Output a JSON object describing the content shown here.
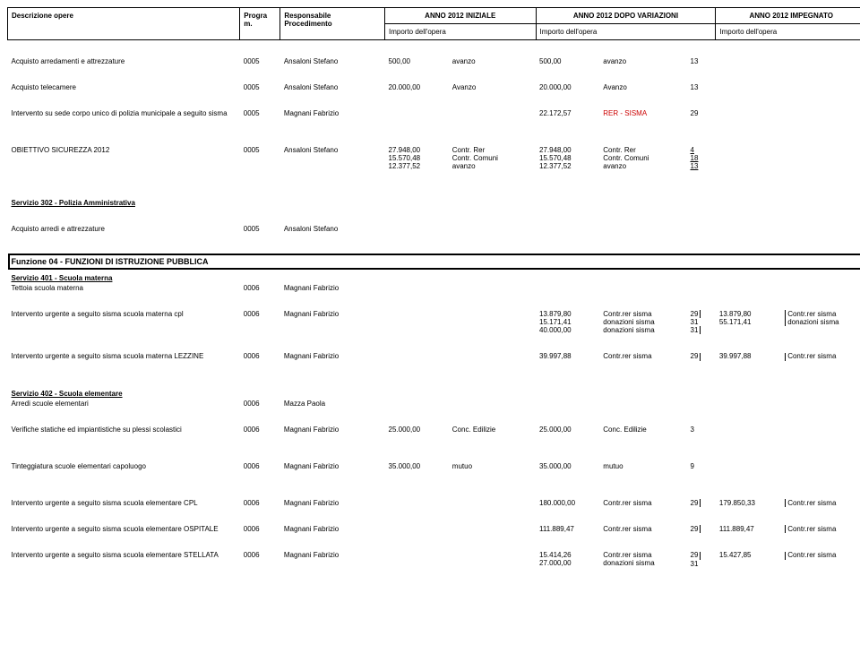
{
  "header": {
    "col0": "Descrizione opere",
    "col1": "Progra\nm.",
    "col2": "Responsabile\nProcedimento",
    "colA": "ANNO 2012 INIZIALE",
    "colB": "ANNO 2012 DOPO VARIAZIONI",
    "colC": "ANNO 2012 IMPEGNATO",
    "sub": "Importo dell'opera"
  },
  "rows": {
    "r1": {
      "desc": "Acquisto arredamenti e attrezzature",
      "prog": "0005",
      "resp": "Ansaloni Stefano",
      "a_val": "500,00",
      "a_src": "avanzo",
      "b_val": "500,00",
      "b_src": "avanzo",
      "b_n": "13"
    },
    "r2": {
      "desc": "Acquisto telecamere",
      "prog": "0005",
      "resp": "Ansaloni Stefano",
      "a_val": "20.000,00",
      "a_src": "Avanzo",
      "b_val": "20.000,00",
      "b_src": "Avanzo",
      "b_n": "13"
    },
    "r3": {
      "desc": "Intervento su sede corpo unico di polizia municipale a seguito sisma",
      "prog": "0005",
      "resp": "Magnani Fabrizio",
      "b_val": "22.172,57",
      "b_src": "RER - SISMA",
      "b_n": "29"
    },
    "r4": {
      "desc": "OBIETTIVO SICUREZZA 2012",
      "prog": "0005",
      "resp": "Ansaloni Stefano",
      "a_lines": [
        [
          "27.948,00",
          "Contr. Rer"
        ],
        [
          "15.570,48",
          "Contr. Comuni"
        ],
        [
          "12.377,52",
          "avanzo"
        ]
      ],
      "b_lines": [
        [
          "27.948,00",
          "Contr. Rer",
          "4"
        ],
        [
          "15.570,48",
          "Contr. Comuni",
          "18"
        ],
        [
          "12.377,52",
          "avanzo",
          "13"
        ]
      ]
    },
    "s302": "Servizio 302 - Polizia Amministrativa",
    "r5": {
      "desc": "Acquisto arredi e attrezzature",
      "prog": "0005",
      "resp": "Ansaloni Stefano"
    },
    "fn04": "Funzione 04 - FUNZIONI DI ISTRUZIONE PUBBLICA",
    "s401": "Servizio 401 - Scuola materna",
    "r6": {
      "desc": "Tettoia scuola materna",
      "prog": "0006",
      "resp": "Magnani Fabrizio"
    },
    "r7": {
      "desc": "Intervento urgente a seguito sisma scuola materna cpl",
      "prog": "0006",
      "resp": "Magnani Fabrizio",
      "b_lines": [
        [
          "13.879,80",
          "Contr.rer sisma",
          "29"
        ],
        [
          "15.171,41",
          "donazioni sisma",
          "31"
        ],
        [
          "40.000,00",
          "donazioni sisma",
          "31"
        ]
      ],
      "c_lines": [
        [
          "13.879,80",
          "Contr.rer sisma"
        ],
        [
          "55.171,41",
          "donazioni sisma"
        ]
      ]
    },
    "r8": {
      "desc": "Intervento urgente a seguito sisma scuola materna LEZZINE",
      "prog": "0006",
      "resp": "Magnani Fabrizio",
      "b_val": "39.997,88",
      "b_src": "Contr.rer sisma",
      "b_n": "29",
      "c_val": "39.997,88",
      "c_src": "Contr.rer sisma"
    },
    "s402": "Servizio 402 - Scuola elementare",
    "r9": {
      "desc": "Arredi scuole elementari",
      "prog": "0006",
      "resp": "Mazza Paola"
    },
    "r10": {
      "desc": "Verifiche statiche ed impiantistiche su plessi scolastici",
      "prog": "0006",
      "resp": "Magnani Fabrizio",
      "a_val": "25.000,00",
      "a_src": "Conc. Edilizie",
      "b_val": "25.000,00",
      "b_src": "Conc. Edilizie",
      "b_n": "3"
    },
    "r11": {
      "desc": "Tinteggiatura scuole elementari capoluogo",
      "prog": "0006",
      "resp": "Magnani Fabrizio",
      "a_val": "35.000,00",
      "a_src": "mutuo",
      "b_val": "35.000,00",
      "b_src": "mutuo",
      "b_n": "9"
    },
    "r12": {
      "desc": "Intervento urgente a seguito sisma scuola elementare CPL",
      "prog": "0006",
      "resp": "Magnani Fabrizio",
      "b_val": "180.000,00",
      "b_src": "Contr.rer sisma",
      "b_n": "29",
      "c_val": "179.850,33",
      "c_src": "Contr.rer sisma"
    },
    "r13": {
      "desc": "Intervento urgente a seguito sisma scuola elementare OSPITALE",
      "prog": "0006",
      "resp": "Magnani Fabrizio",
      "b_val": "111.889,47",
      "b_src": "Contr.rer sisma",
      "b_n": "29",
      "c_val": "111.889,47",
      "c_src": "Contr.rer sisma"
    },
    "r14": {
      "desc": "Intervento urgente a seguito sisma scuola elementare STELLATA",
      "prog": "0006",
      "resp": "Magnani Fabrizio",
      "b_lines": [
        [
          "15.414,26",
          "Contr.rer sisma",
          "29"
        ],
        [
          "27.000,00",
          "donazioni sisma",
          "31"
        ]
      ],
      "c_lines": [
        [
          "15.427,85",
          "Contr.rer sisma"
        ]
      ]
    }
  }
}
